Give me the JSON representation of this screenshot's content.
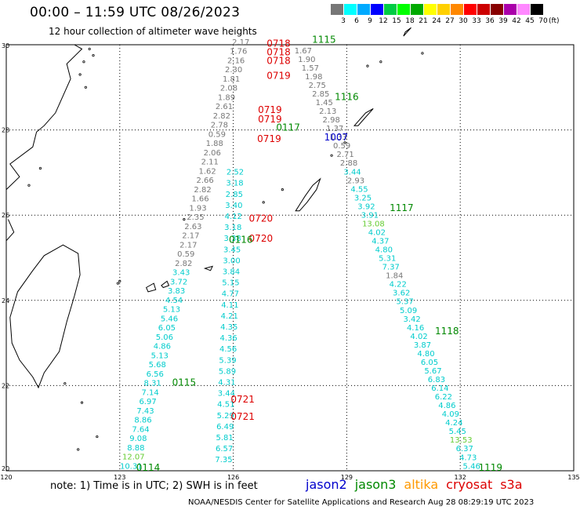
{
  "title": "00:00 – 11:59 UTC 08/26/2023",
  "subtitle": "12 hour collection of altimeter wave heights",
  "note": "note:  1) Time is in UTC;  2) SWH is in feet",
  "credit": "NOAA/NESDIS Center for Satellite Applications and Research     Aug 28 08:29:19 UTC 2023",
  "satellites": [
    {
      "name": "jason2",
      "color": "#0000cc"
    },
    {
      "name": "jason3",
      "color": "#008800"
    },
    {
      "name": "altika",
      "color": "#ff9900"
    },
    {
      "name": "cryosat",
      "color": "#dd0000"
    },
    {
      "name": "s3a",
      "color": "#dd0000"
    }
  ],
  "colorbar": {
    "unit": "(ft)",
    "labels": [
      "3",
      "6",
      "9",
      "12",
      "15",
      "18",
      "21",
      "24",
      "27",
      "30",
      "33",
      "36",
      "39",
      "42",
      "45",
      "70"
    ],
    "colors": [
      "#777777",
      "#00ffff",
      "#00aaff",
      "#0000ff",
      "#00cc44",
      "#00ff00",
      "#00aa00",
      "#ffff00",
      "#ffd000",
      "#ff8800",
      "#ff0000",
      "#cc0000",
      "#880000",
      "#aa00aa",
      "#ff88ff",
      "#000000"
    ]
  },
  "axes": {
    "lon_ticks": [
      "120",
      "123",
      "126",
      "129",
      "132",
      "135"
    ],
    "lat_ticks": [
      "20",
      "22",
      "24",
      "26",
      "28",
      "30"
    ]
  },
  "value_colors": {
    "gray": "#777777",
    "cyan": "#00cccc",
    "blue": "#0000cc",
    "lightgreen": "#66cc33"
  },
  "time_labels": [
    {
      "t": "0718",
      "c": "#dd0000",
      "lon": 127.2,
      "lat": 29.95
    },
    {
      "t": "0718",
      "c": "#dd0000",
      "lon": 127.2,
      "lat": 29.75
    },
    {
      "t": "0718",
      "c": "#dd0000",
      "lon": 127.2,
      "lat": 29.55
    },
    {
      "t": "0719",
      "c": "#dd0000",
      "lon": 127.2,
      "lat": 29.2
    },
    {
      "t": "0719",
      "c": "#dd0000",
      "lon": 126.97,
      "lat": 28.4
    },
    {
      "t": "0719",
      "c": "#dd0000",
      "lon": 126.97,
      "lat": 28.18
    },
    {
      "t": "0719",
      "c": "#dd0000",
      "lon": 126.95,
      "lat": 27.72
    },
    {
      "t": "0720",
      "c": "#dd0000",
      "lon": 126.73,
      "lat": 25.85
    },
    {
      "t": "0720",
      "c": "#dd0000",
      "lon": 126.73,
      "lat": 25.38
    },
    {
      "t": "0721",
      "c": "#dd0000",
      "lon": 126.25,
      "lat": 21.6
    },
    {
      "t": "0721",
      "c": "#dd0000",
      "lon": 126.25,
      "lat": 21.2
    },
    {
      "t": "1115",
      "c": "#008800",
      "lon": 128.4,
      "lat": 30.05
    },
    {
      "t": "1116",
      "c": "#008800",
      "lon": 129.0,
      "lat": 28.7
    },
    {
      "t": "0117",
      "c": "#008800",
      "lon": 127.45,
      "lat": 27.98
    },
    {
      "t": "1117",
      "c": "#008800",
      "lon": 130.45,
      "lat": 26.1
    },
    {
      "t": "0116",
      "c": "#008800",
      "lon": 126.2,
      "lat": 25.35
    },
    {
      "t": "1118",
      "c": "#008800",
      "lon": 131.65,
      "lat": 23.2
    },
    {
      "t": "0115",
      "c": "#008800",
      "lon": 124.7,
      "lat": 22.0
    },
    {
      "t": "0114",
      "c": "#008800",
      "lon": 123.75,
      "lat": 20.0
    },
    {
      "t": "1119",
      "c": "#008800",
      "lon": 132.8,
      "lat": 20.0
    },
    {
      "t": "1007",
      "c": "#0000cc",
      "lon": 128.72,
      "lat": 27.75
    }
  ],
  "tracks": [
    {
      "name": "jason3-pass-0719-0721",
      "color": "#777777",
      "startColor": "#777777",
      "values": [
        "2.17",
        "1.76",
        "2.16",
        "2.30",
        "1.81",
        "2.08",
        "1.89",
        "2.61",
        "2.82",
        "2.78",
        "0.59",
        "1.88",
        "2.06",
        "2.11",
        "1.62",
        "2.66",
        "2.82",
        "1.66",
        "1.93",
        "2.35",
        "2.63",
        "2.17",
        "2.17",
        "0.59",
        "2.82",
        "3.43",
        "3.72",
        "3.83",
        "4.54",
        "5.13",
        "5.46",
        "6.05",
        "5.06",
        "4.86",
        "5.13",
        "5.68",
        "6.56",
        "8.31",
        "7.14",
        "6.97",
        "7.43",
        "8.86",
        "7.64",
        "9.08",
        "8.88",
        "12.07",
        "10.31"
      ],
      "lon0": 126.2,
      "lat0": 30.0,
      "lon1": 123.3,
      "lat1": 20.05
    },
    {
      "name": "altika-pass-1115-1119",
      "color": "#777777",
      "values": [
        "1.67",
        "1.90",
        "1.57",
        "1.98",
        "2.75",
        "2.85",
        "1.45",
        "2.13",
        "2.98",
        "1.37",
        "1.33",
        "0.59",
        "2.71",
        "2.88",
        "3.44",
        "2.93",
        "4.55",
        "3.25",
        "3.92",
        "3.91",
        "13.08",
        "4.02",
        "4.37",
        "4.80",
        "5.31",
        "7.37",
        "1.84",
        "4.22",
        "3.62",
        "5.37",
        "5.09",
        "3.42",
        "4.16",
        "4.02",
        "3.87",
        "4.80",
        "6.05",
        "5.67",
        "6.83",
        "6.14",
        "6.22",
        "4.86",
        "4.09",
        "4.24",
        "5.45",
        "13.53",
        "6.37",
        "4.73",
        "5.46"
      ],
      "lon0": 127.85,
      "lat0": 29.8,
      "lon1": 132.3,
      "lat1": 20.05
    },
    {
      "name": "cryosat-pass-0720",
      "color": "#00cccc",
      "values": [
        "2.52",
        "3.18",
        "2.85",
        "3.40",
        "4.12",
        "3.18",
        "3.38",
        "3.45",
        "3.00",
        "3.84",
        "5.15",
        "4.77",
        "4.11",
        "4.21",
        "4.35",
        "4.36",
        "4.56",
        "5.39",
        "5.89",
        "4.31",
        "3.44",
        "4.51",
        "5.29",
        "6.49",
        "5.81",
        "6.57",
        "7.35"
      ],
      "lon0": 126.05,
      "lat0": 26.95,
      "lon1": 125.75,
      "lat1": 20.2
    }
  ]
}
